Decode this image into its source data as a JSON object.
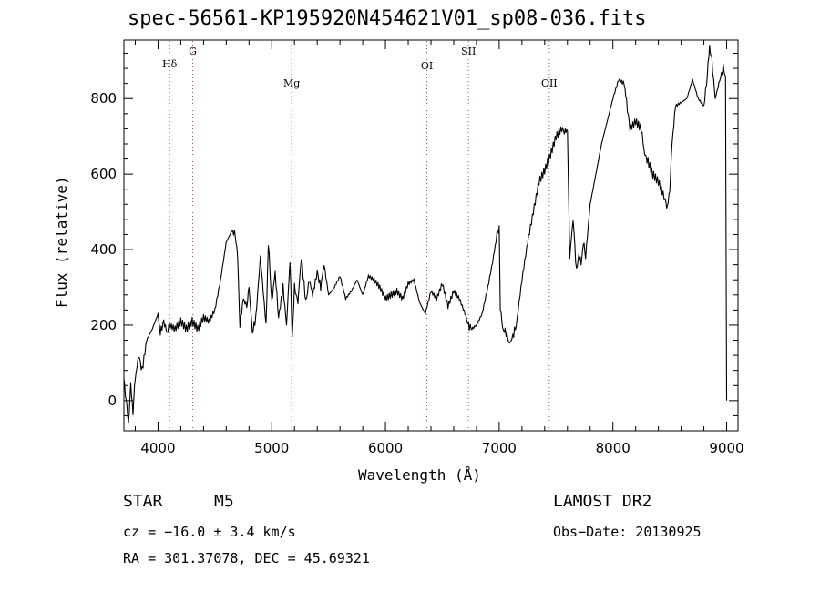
{
  "title": "spec-56561-KP195920N454621V01_sp08-036.fits",
  "chart_data": {
    "type": "line",
    "title": "spec-56561-KP195920N454621V01_sp08-036.fits",
    "xlabel": "Wavelength (Å)",
    "ylabel": "Flux (relative)",
    "xlim": [
      3700,
      9100
    ],
    "ylim": [
      -80,
      955
    ],
    "xticks": [
      4000,
      5000,
      6000,
      7000,
      8000,
      9000
    ],
    "yticks": [
      0,
      200,
      400,
      600,
      800
    ],
    "grid": false,
    "series": [
      {
        "x": [
          3700,
          3720,
          3740,
          3760,
          3780,
          3800,
          3830,
          3860,
          3900,
          3950,
          4000,
          4020,
          4050,
          4080,
          4100,
          4150,
          4200,
          4250,
          4300,
          4350,
          4400,
          4450,
          4500,
          4550,
          4600,
          4650,
          4680,
          4700,
          4720,
          4750,
          4780,
          4800,
          4830,
          4860,
          4900,
          4950,
          4970,
          5000,
          5030,
          5060,
          5100,
          5130,
          5160,
          5180,
          5200,
          5230,
          5260,
          5300,
          5330,
          5360,
          5400,
          5430,
          5460,
          5500,
          5550,
          5600,
          5650,
          5700,
          5750,
          5800,
          5850,
          5900,
          5950,
          6000,
          6050,
          6100,
          6150,
          6200,
          6250,
          6300,
          6350,
          6400,
          6450,
          6500,
          6550,
          6600,
          6650,
          6700,
          6730,
          6760,
          6800,
          6850,
          6900,
          6950,
          6980,
          7000,
          7010,
          7030,
          7060,
          7090,
          7120,
          7150,
          7200,
          7250,
          7300,
          7350,
          7400,
          7450,
          7500,
          7550,
          7580,
          7600,
          7620,
          7650,
          7680,
          7700,
          7720,
          7740,
          7760,
          7800,
          7850,
          7900,
          7950,
          8000,
          8050,
          8100,
          8120,
          8150,
          8200,
          8250,
          8280,
          8300,
          8350,
          8400,
          8450,
          8480,
          8500,
          8520,
          8550,
          8600,
          8650,
          8700,
          8750,
          8800,
          8830,
          8850,
          8870,
          8900,
          8940,
          8970,
          8990,
          9000
        ],
        "y": [
          60,
          0,
          -60,
          40,
          -30,
          60,
          120,
          80,
          160,
          190,
          230,
          180,
          210,
          180,
          200,
          190,
          210,
          190,
          210,
          190,
          220,
          210,
          240,
          320,
          420,
          450,
          440,
          380,
          200,
          270,
          250,
          300,
          180,
          220,
          380,
          200,
          420,
          260,
          340,
          220,
          300,
          200,
          370,
          170,
          300,
          260,
          380,
          260,
          320,
          280,
          340,
          300,
          360,
          280,
          300,
          330,
          270,
          290,
          320,
          280,
          330,
          320,
          300,
          270,
          280,
          290,
          270,
          310,
          320,
          260,
          230,
          290,
          270,
          310,
          250,
          290,
          270,
          230,
          200,
          190,
          200,
          230,
          300,
          380,
          440,
          460,
          250,
          190,
          180,
          150,
          170,
          200,
          320,
          420,
          500,
          580,
          610,
          650,
          700,
          720,
          710,
          720,
          380,
          480,
          340,
          390,
          360,
          420,
          380,
          520,
          600,
          680,
          740,
          800,
          850,
          840,
          790,
          720,
          740,
          720,
          650,
          640,
          600,
          580,
          540,
          510,
          560,
          680,
          780,
          790,
          800,
          850,
          800,
          780,
          860,
          940,
          900,
          800,
          850,
          880,
          860,
          0
        ]
      }
    ],
    "line_marks": [
      {
        "label": "Hδ",
        "x": 4102
      },
      {
        "label": "G",
        "x": 4305
      },
      {
        "label": "Mg",
        "x": 5175
      },
      {
        "label": "OI",
        "x": 6364
      },
      {
        "label": "SII",
        "x": 6730
      },
      {
        "label": "OII",
        "x": 7440
      }
    ]
  },
  "info": {
    "object_type": "STAR",
    "subclass": "M5",
    "survey": "LAMOST DR2",
    "cz": "cz = −16.0 ± 3.4 km/s",
    "obs_date": "Obs−Date: 20130925",
    "coords": "RA = 301.37078, DEC =  45.69321"
  },
  "colors": {
    "line_marker": "#d04040",
    "spectrum": "#000000"
  }
}
